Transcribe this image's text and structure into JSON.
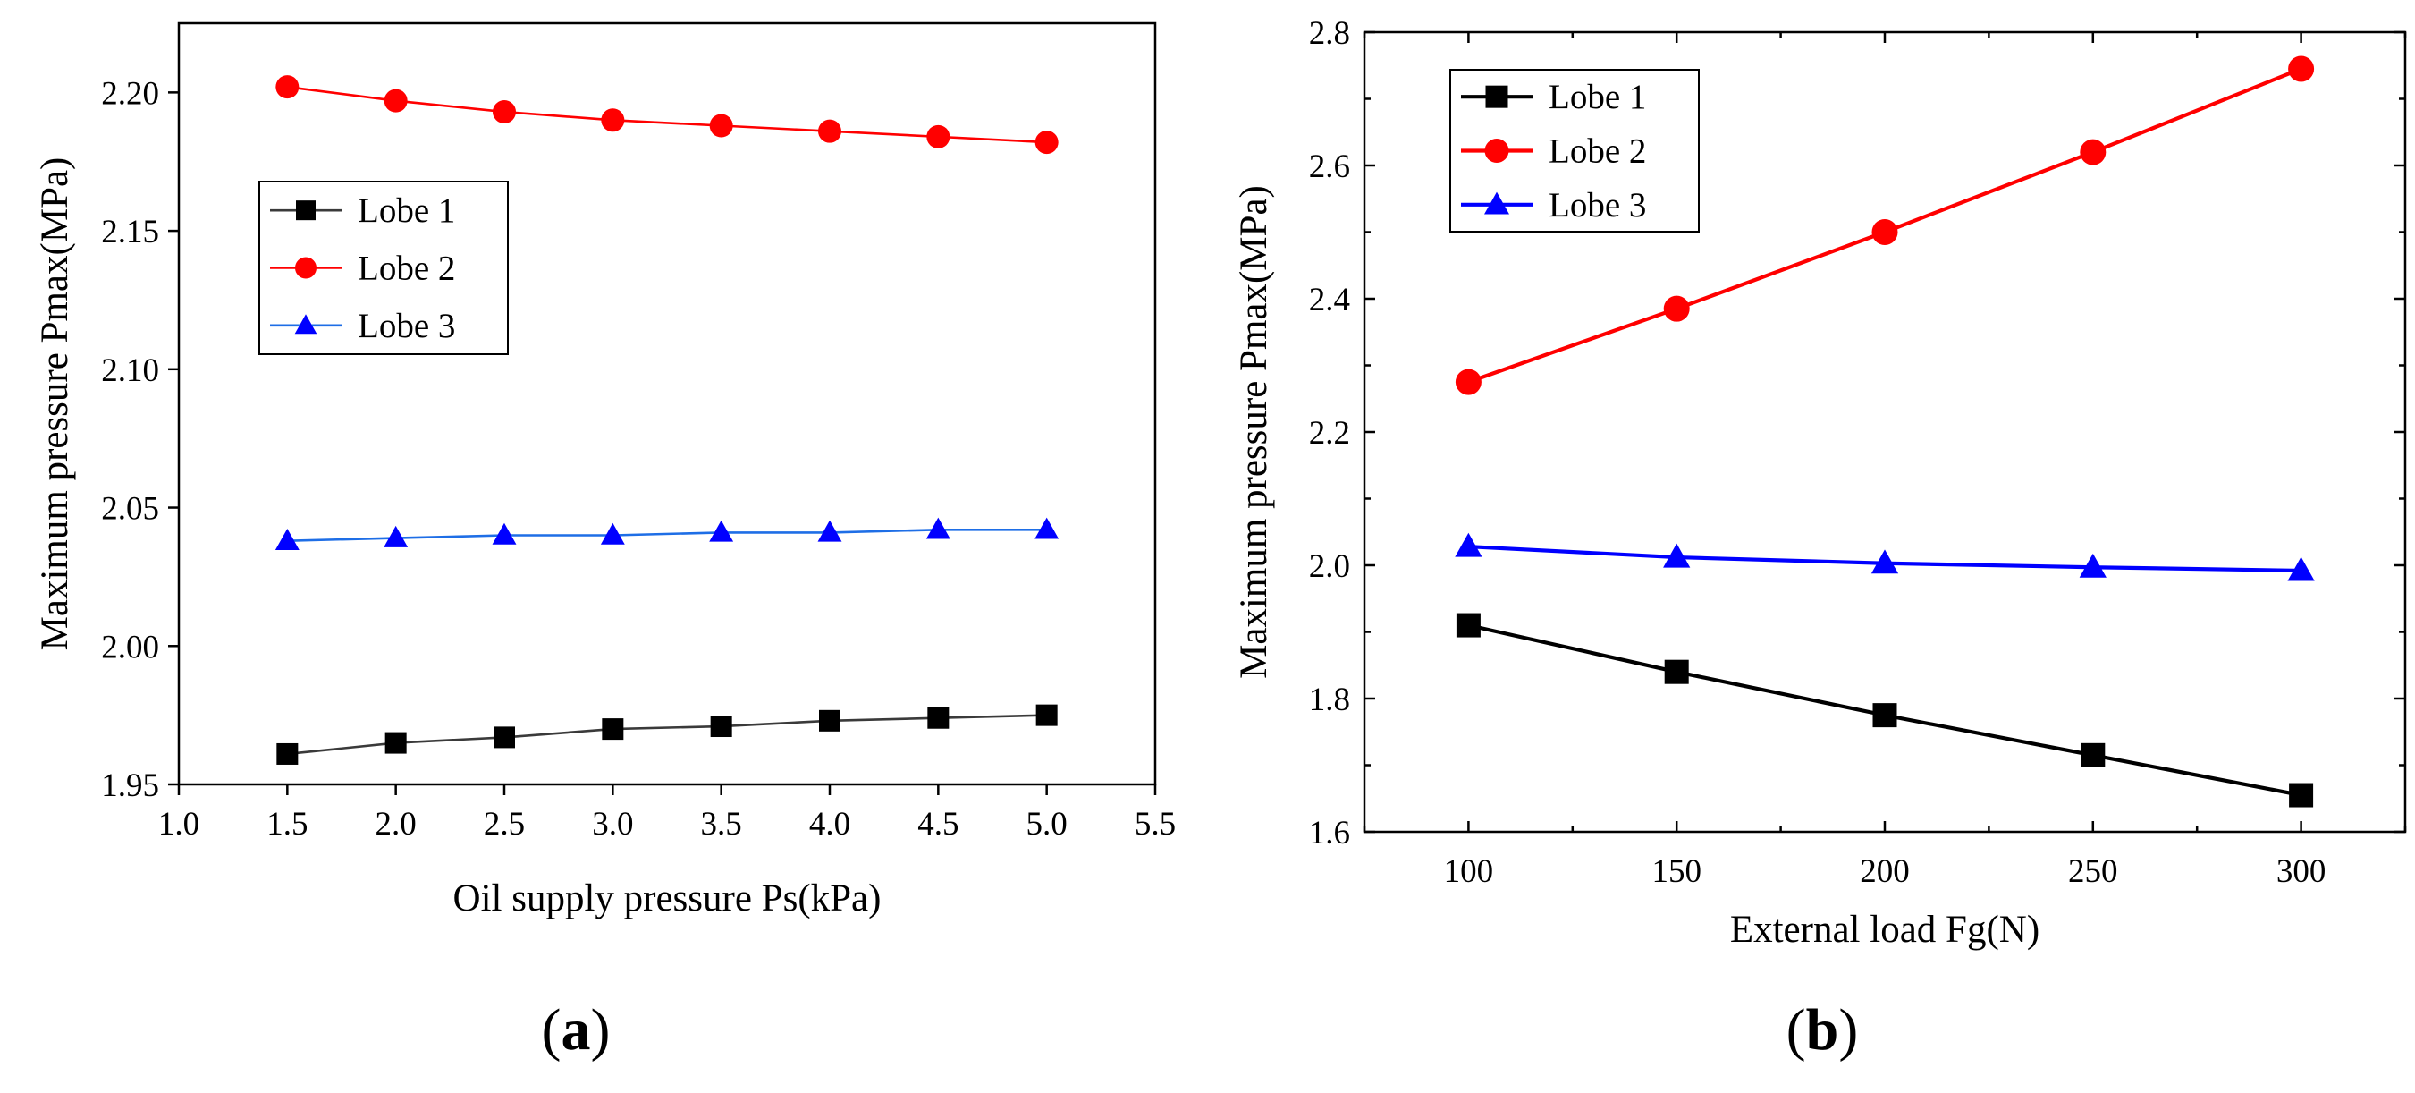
{
  "chart_data": [
    {
      "type": "line",
      "panel": "a",
      "panel_label": "a",
      "title": "",
      "xlabel": "Oil supply pressure Ps(kPa)",
      "ylabel": "Maximum pressure Pmax(MPa)",
      "xlim": [
        1.0,
        5.5
      ],
      "ylim": [
        1.95,
        2.225
      ],
      "xticks": [
        1.0,
        1.5,
        2.0,
        2.5,
        3.0,
        3.5,
        4.0,
        4.5,
        5.0,
        5.5
      ],
      "xtick_labels": [
        "1.0",
        "1.5",
        "2.0",
        "2.5",
        "3.0",
        "3.5",
        "4.0",
        "4.5",
        "5.0",
        "5.5"
      ],
      "yticks": [
        1.95,
        2.0,
        2.05,
        2.1,
        2.15,
        2.2
      ],
      "ytick_labels": [
        "1.95",
        "2.00",
        "2.05",
        "2.10",
        "2.15",
        "2.20"
      ],
      "grid": false,
      "legend_position": "upper-left",
      "x": [
        1.5,
        2.0,
        2.5,
        3.0,
        3.5,
        4.0,
        4.5,
        5.0
      ],
      "series": [
        {
          "name": "Lobe 1",
          "color": "#000000",
          "line_color": "#3a3a3a",
          "marker": "square",
          "values": [
            1.961,
            1.965,
            1.967,
            1.97,
            1.971,
            1.973,
            1.974,
            1.975
          ]
        },
        {
          "name": "Lobe 2",
          "color": "#ff0000",
          "line_color": "#ff0000",
          "marker": "circle",
          "values": [
            2.202,
            2.197,
            2.193,
            2.19,
            2.188,
            2.186,
            2.184,
            2.182
          ]
        },
        {
          "name": "Lobe 3",
          "color": "#0000ff",
          "line_color": "#1e6ee6",
          "marker": "triangle",
          "values": [
            2.038,
            2.039,
            2.04,
            2.04,
            2.041,
            2.041,
            2.042,
            2.042
          ]
        }
      ]
    },
    {
      "type": "line",
      "panel": "b",
      "panel_label": "b",
      "title": "",
      "xlabel": "External load Fg(N)",
      "ylabel": "Maximum pressure Pmax(MPa)",
      "xlim": [
        75,
        325
      ],
      "ylim": [
        1.6,
        2.8
      ],
      "xticks": [
        100,
        150,
        200,
        250,
        300
      ],
      "xtick_labels": [
        "100",
        "150",
        "200",
        "250",
        "300"
      ],
      "xminor": [
        75,
        125,
        175,
        225,
        275,
        325
      ],
      "yticks": [
        1.6,
        1.8,
        2.0,
        2.2,
        2.4,
        2.6,
        2.8
      ],
      "ytick_labels": [
        "1.6",
        "1.8",
        "2.0",
        "2.2",
        "2.4",
        "2.6",
        "2.8"
      ],
      "yminor": [
        1.7,
        1.9,
        2.1,
        2.3,
        2.5,
        2.7
      ],
      "grid": false,
      "legend_position": "upper-left",
      "x": [
        100,
        150,
        200,
        250,
        300
      ],
      "series": [
        {
          "name": "Lobe 1",
          "color": "#000000",
          "line_color": "#000000",
          "marker": "square",
          "values": [
            1.91,
            1.84,
            1.775,
            1.715,
            1.655
          ]
        },
        {
          "name": "Lobe 2",
          "color": "#ff0000",
          "line_color": "#ff0000",
          "marker": "circle",
          "values": [
            2.275,
            2.385,
            2.5,
            2.62,
            2.745
          ]
        },
        {
          "name": "Lobe 3",
          "color": "#0000ff",
          "line_color": "#0000ff",
          "marker": "triangle",
          "values": [
            2.028,
            2.012,
            2.003,
            1.997,
            1.992
          ]
        }
      ]
    }
  ]
}
